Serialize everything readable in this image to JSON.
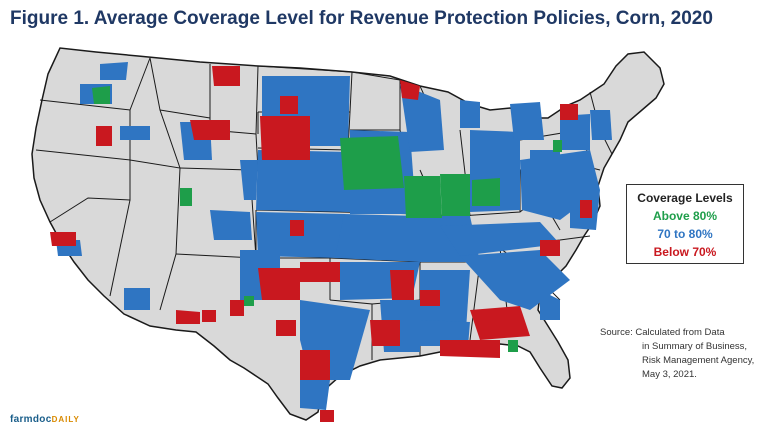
{
  "title": "Figure 1.  Average Coverage Level for Revenue Protection Policies, Corn, 2020",
  "legend": {
    "header": "Coverage Levels",
    "items": [
      {
        "label": "Above 80%",
        "color": "#1e9e4a"
      },
      {
        "label": "70 to 80%",
        "color": "#2f75c2"
      },
      {
        "label": "Below 70%",
        "color": "#c9181f"
      }
    ]
  },
  "source_lines": [
    "Source:  Calculated from Data",
    "in Summary of Business,",
    "Risk Management Agency,",
    "May 3, 2021."
  ],
  "logo": {
    "brand": "farmdoc",
    "sub": "DAILY"
  },
  "colors": {
    "land": "#d9d9d9",
    "border": "#1a1a1a",
    "title": "#1f3864"
  }
}
